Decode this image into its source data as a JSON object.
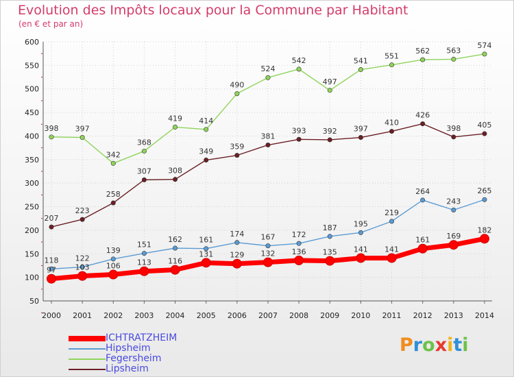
{
  "header": {
    "title": "Evolution des Impôts locaux pour la Commune par Habitant",
    "subtitle": "(en € et par an)"
  },
  "logo_text": "Proxiti",
  "colors": {
    "title": "#d43b6a",
    "grid": "#cfcfcf",
    "axis_ticks_red": "#cc2222"
  },
  "chart_data": {
    "type": "line",
    "title": "Evolution des Impôts locaux pour la Commune par Habitant",
    "subtitle": "(en € et par an)",
    "x": [
      2000,
      2001,
      2002,
      2003,
      2004,
      2005,
      2006,
      2007,
      2008,
      2009,
      2010,
      2011,
      2012,
      2013,
      2014
    ],
    "ylim": [
      50,
      600
    ],
    "yticks": [
      50,
      100,
      150,
      200,
      250,
      300,
      350,
      400,
      450,
      500,
      550,
      600
    ],
    "grid": true,
    "legend_position": "bottom-left",
    "series": [
      {
        "name": "ICHTRATZHEIM",
        "color": "#ff0000",
        "values": [
          97,
          103,
          106,
          113,
          116,
          131,
          129,
          132,
          136,
          135,
          141,
          141,
          161,
          169,
          182
        ]
      },
      {
        "name": "Hipsheim",
        "color": "#5a9bd4",
        "values": [
          118,
          122,
          139,
          151,
          162,
          161,
          174,
          167,
          172,
          187,
          195,
          219,
          264,
          243,
          265
        ]
      },
      {
        "name": "Fegersheim",
        "color": "#8fd45a",
        "values": [
          398,
          397,
          342,
          368,
          419,
          414,
          490,
          524,
          542,
          497,
          541,
          551,
          562,
          563,
          574
        ]
      },
      {
        "name": "Lipsheim",
        "color": "#6b1f24",
        "values": [
          207,
          223,
          258,
          307,
          308,
          349,
          359,
          381,
          393,
          392,
          397,
          410,
          426,
          398,
          405
        ]
      }
    ]
  }
}
